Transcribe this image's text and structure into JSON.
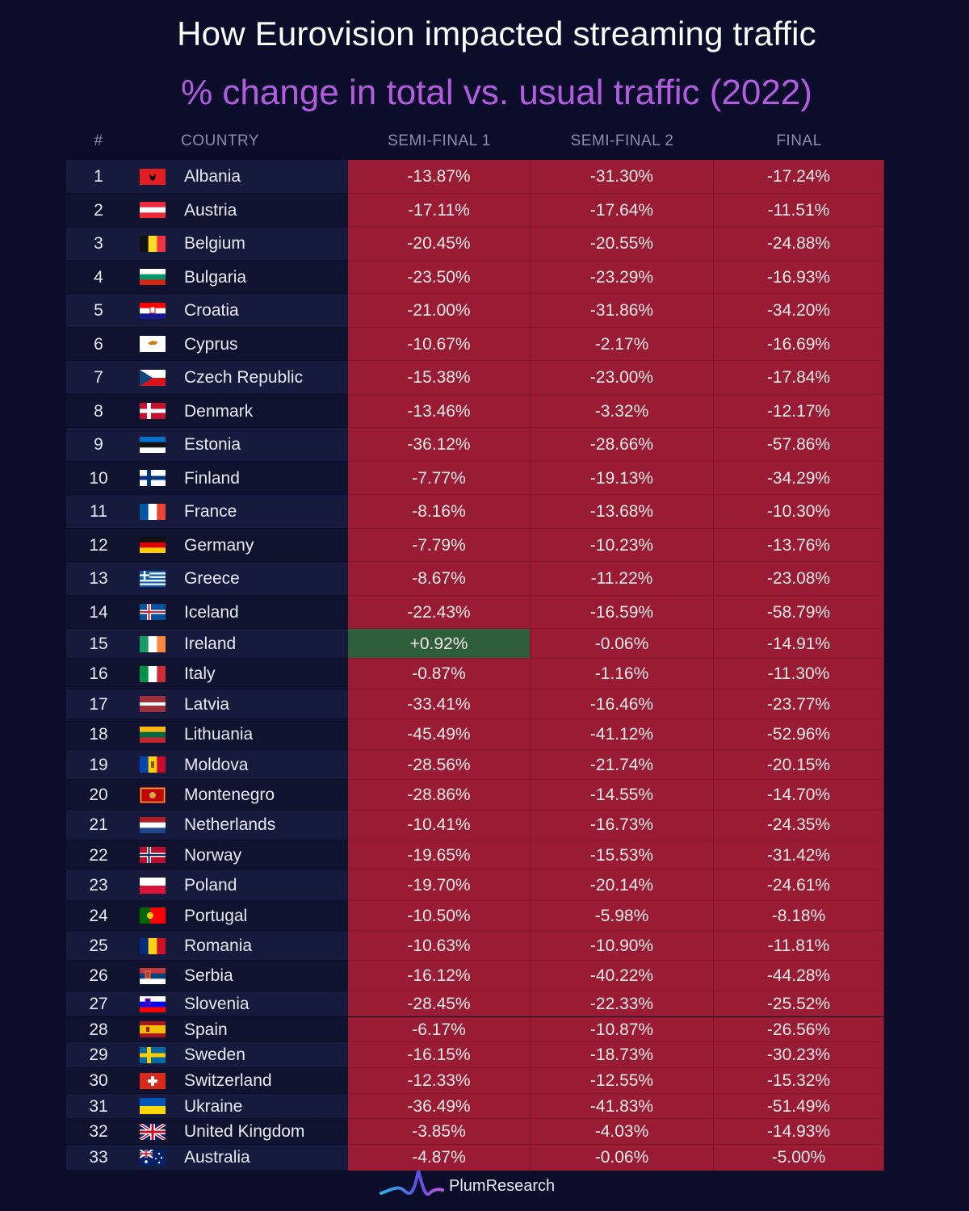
{
  "title": "How Eurovision impacted streaming traffic",
  "subtitle": "% change in total vs. usual traffic (2022)",
  "headers": {
    "rank": "#",
    "country": "COUNTRY",
    "semi1": "SEMI-FINAL 1",
    "semi2": "SEMI-FINAL 2",
    "final": "FINAL"
  },
  "brand": "PlumResearch",
  "colors": {
    "negative": "#9a1b34",
    "positive": "#2f5f3a",
    "title": "#ffffff",
    "subtitle": "#b35ce0",
    "background": "#0b0d2b"
  },
  "chart_data": {
    "type": "table",
    "columns": [
      "#",
      "COUNTRY",
      "SEMI-FINAL 1",
      "SEMI-FINAL 2",
      "FINAL"
    ],
    "rows": [
      {
        "rank": "1",
        "country": "Albania",
        "flag": "albania",
        "semi1": "-13.87%",
        "semi2": "-31.30%",
        "final": "-17.24%"
      },
      {
        "rank": "2",
        "country": "Austria",
        "flag": "austria",
        "semi1": "-17.11%",
        "semi2": "-17.64%",
        "final": "-11.51%"
      },
      {
        "rank": "3",
        "country": "Belgium",
        "flag": "belgium",
        "semi1": "-20.45%",
        "semi2": "-20.55%",
        "final": "-24.88%"
      },
      {
        "rank": "4",
        "country": "Bulgaria",
        "flag": "bulgaria",
        "semi1": "-23.50%",
        "semi2": "-23.29%",
        "final": "-16.93%"
      },
      {
        "rank": "5",
        "country": "Croatia",
        "flag": "croatia",
        "semi1": "-21.00%",
        "semi2": "-31.86%",
        "final": "-34.20%"
      },
      {
        "rank": "6",
        "country": "Cyprus",
        "flag": "cyprus",
        "semi1": "-10.67%",
        "semi2": "-2.17%",
        "final": "-16.69%"
      },
      {
        "rank": "7",
        "country": "Czech Republic",
        "flag": "czech-republic",
        "semi1": "-15.38%",
        "semi2": "-23.00%",
        "final": "-17.84%"
      },
      {
        "rank": "8",
        "country": "Denmark",
        "flag": "denmark",
        "semi1": "-13.46%",
        "semi2": "-3.32%",
        "final": "-12.17%"
      },
      {
        "rank": "9",
        "country": "Estonia",
        "flag": "estonia",
        "semi1": "-36.12%",
        "semi2": "-28.66%",
        "final": "-57.86%"
      },
      {
        "rank": "10",
        "country": "Finland",
        "flag": "finland",
        "semi1": "-7.77%",
        "semi2": "-19.13%",
        "final": "-34.29%"
      },
      {
        "rank": "11",
        "country": "France",
        "flag": "france",
        "semi1": "-8.16%",
        "semi2": "-13.68%",
        "final": "-10.30%"
      },
      {
        "rank": "12",
        "country": "Germany",
        "flag": "germany",
        "semi1": "-7.79%",
        "semi2": "-10.23%",
        "final": "-13.76%"
      },
      {
        "rank": "13",
        "country": "Greece",
        "flag": "greece",
        "semi1": "-8.67%",
        "semi2": "-11.22%",
        "final": "-23.08%"
      },
      {
        "rank": "14",
        "country": "Iceland",
        "flag": "iceland",
        "semi1": "-22.43%",
        "semi2": "-16.59%",
        "final": "-58.79%"
      },
      {
        "rank": "15",
        "country": "Ireland",
        "flag": "ireland",
        "semi1": "+0.92%",
        "semi2": "-0.06%",
        "final": "-14.91%"
      },
      {
        "rank": "16",
        "country": "Italy",
        "flag": "italy",
        "semi1": "-0.87%",
        "semi2": "-1.16%",
        "final": "-11.30%"
      },
      {
        "rank": "17",
        "country": "Latvia",
        "flag": "latvia",
        "semi1": "-33.41%",
        "semi2": "-16.46%",
        "final": "-23.77%"
      },
      {
        "rank": "18",
        "country": "Lithuania",
        "flag": "lithuania",
        "semi1": "-45.49%",
        "semi2": "-41.12%",
        "final": "-52.96%"
      },
      {
        "rank": "19",
        "country": "Moldova",
        "flag": "moldova",
        "semi1": "-28.56%",
        "semi2": "-21.74%",
        "final": "-20.15%"
      },
      {
        "rank": "20",
        "country": "Montenegro",
        "flag": "montenegro",
        "semi1": "-28.86%",
        "semi2": "-14.55%",
        "final": "-14.70%"
      },
      {
        "rank": "21",
        "country": "Netherlands",
        "flag": "netherlands",
        "semi1": "-10.41%",
        "semi2": "-16.73%",
        "final": "-24.35%"
      },
      {
        "rank": "22",
        "country": "Norway",
        "flag": "norway",
        "semi1": "-19.65%",
        "semi2": "-15.53%",
        "final": "-31.42%"
      },
      {
        "rank": "23",
        "country": "Poland",
        "flag": "poland",
        "semi1": "-19.70%",
        "semi2": "-20.14%",
        "final": "-24.61%"
      },
      {
        "rank": "24",
        "country": "Portugal",
        "flag": "portugal",
        "semi1": "-10.50%",
        "semi2": "-5.98%",
        "final": "-8.18%"
      },
      {
        "rank": "25",
        "country": "Romania",
        "flag": "romania",
        "semi1": "-10.63%",
        "semi2": "-10.90%",
        "final": "-11.81%"
      },
      {
        "rank": "26",
        "country": "Serbia",
        "flag": "serbia",
        "semi1": "-16.12%",
        "semi2": "-40.22%",
        "final": "-44.28%"
      },
      {
        "rank": "27",
        "country": "Slovenia",
        "flag": "slovenia",
        "semi1": "-28.45%",
        "semi2": "-22.33%",
        "final": "-25.52%"
      },
      {
        "rank": "28",
        "country": "Spain",
        "flag": "spain",
        "semi1": "-6.17%",
        "semi2": "-10.87%",
        "final": "-26.56%"
      },
      {
        "rank": "29",
        "country": "Sweden",
        "flag": "sweden",
        "semi1": "-16.15%",
        "semi2": "-18.73%",
        "final": "-30.23%"
      },
      {
        "rank": "30",
        "country": "Switzerland",
        "flag": "switzerland",
        "semi1": "-12.33%",
        "semi2": "-12.55%",
        "final": "-15.32%"
      },
      {
        "rank": "31",
        "country": "Ukraine",
        "flag": "ukraine",
        "semi1": "-36.49%",
        "semi2": "-41.83%",
        "final": "-51.49%"
      },
      {
        "rank": "32",
        "country": "United Kingdom",
        "flag": "united-kingdom",
        "semi1": "-3.85%",
        "semi2": "-4.03%",
        "final": "-14.93%"
      },
      {
        "rank": "33",
        "country": "Australia",
        "flag": "australia",
        "semi1": "-4.87%",
        "semi2": "-0.06%",
        "final": "-5.00%"
      }
    ]
  }
}
